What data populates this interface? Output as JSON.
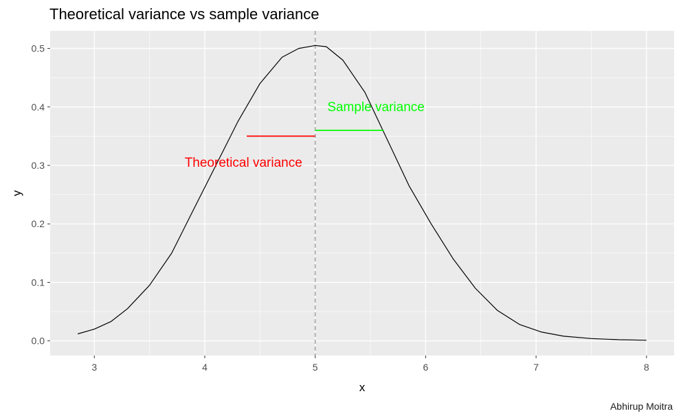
{
  "chart_data": {
    "type": "line",
    "title": "Theoretical variance vs sample variance",
    "xlabel": "x",
    "ylabel": "y",
    "caption": "Abhirup Moitra",
    "xlim": [
      2.6,
      8.25
    ],
    "ylim": [
      -0.025,
      0.53
    ],
    "x_ticks": [
      3,
      4,
      5,
      6,
      7,
      8
    ],
    "y_ticks": [
      0.0,
      0.1,
      0.2,
      0.3,
      0.4,
      0.5
    ],
    "x_tick_labels": [
      "3",
      "4",
      "5",
      "6",
      "7",
      "8"
    ],
    "y_tick_labels": [
      "0.0",
      "0.1",
      "0.2",
      "0.3",
      "0.4",
      "0.5"
    ],
    "grid": true,
    "background": "#EBEBEB",
    "series": [
      {
        "color": "#000000",
        "x": [
          2.85,
          3.0,
          3.15,
          3.3,
          3.5,
          3.7,
          3.9,
          4.1,
          4.3,
          4.5,
          4.7,
          4.85,
          5.0,
          5.1,
          5.25,
          5.45,
          5.65,
          5.85,
          6.05,
          6.25,
          6.45,
          6.65,
          6.85,
          7.05,
          7.25,
          7.5,
          7.75,
          8.0
        ],
        "y": [
          0.012,
          0.02,
          0.033,
          0.055,
          0.095,
          0.15,
          0.225,
          0.3,
          0.375,
          0.44,
          0.485,
          0.5,
          0.505,
          0.503,
          0.48,
          0.425,
          0.345,
          0.265,
          0.2,
          0.14,
          0.09,
          0.052,
          0.028,
          0.015,
          0.008,
          0.004,
          0.002,
          0.001
        ]
      }
    ],
    "vline": {
      "x": 5.0,
      "color": "#B3B3B3",
      "style": "dashed"
    },
    "segments": [
      {
        "label": "Theoretical variance",
        "color": "#FF0000",
        "x0": 4.38,
        "x1": 5.0,
        "y": 0.35,
        "label_x": 4.35,
        "label_y": 0.305
      },
      {
        "label": "Sample variance",
        "color": "#00FF00",
        "x0": 5.0,
        "x1": 5.62,
        "y": 0.36,
        "label_x": 5.55,
        "label_y": 0.4
      }
    ]
  }
}
